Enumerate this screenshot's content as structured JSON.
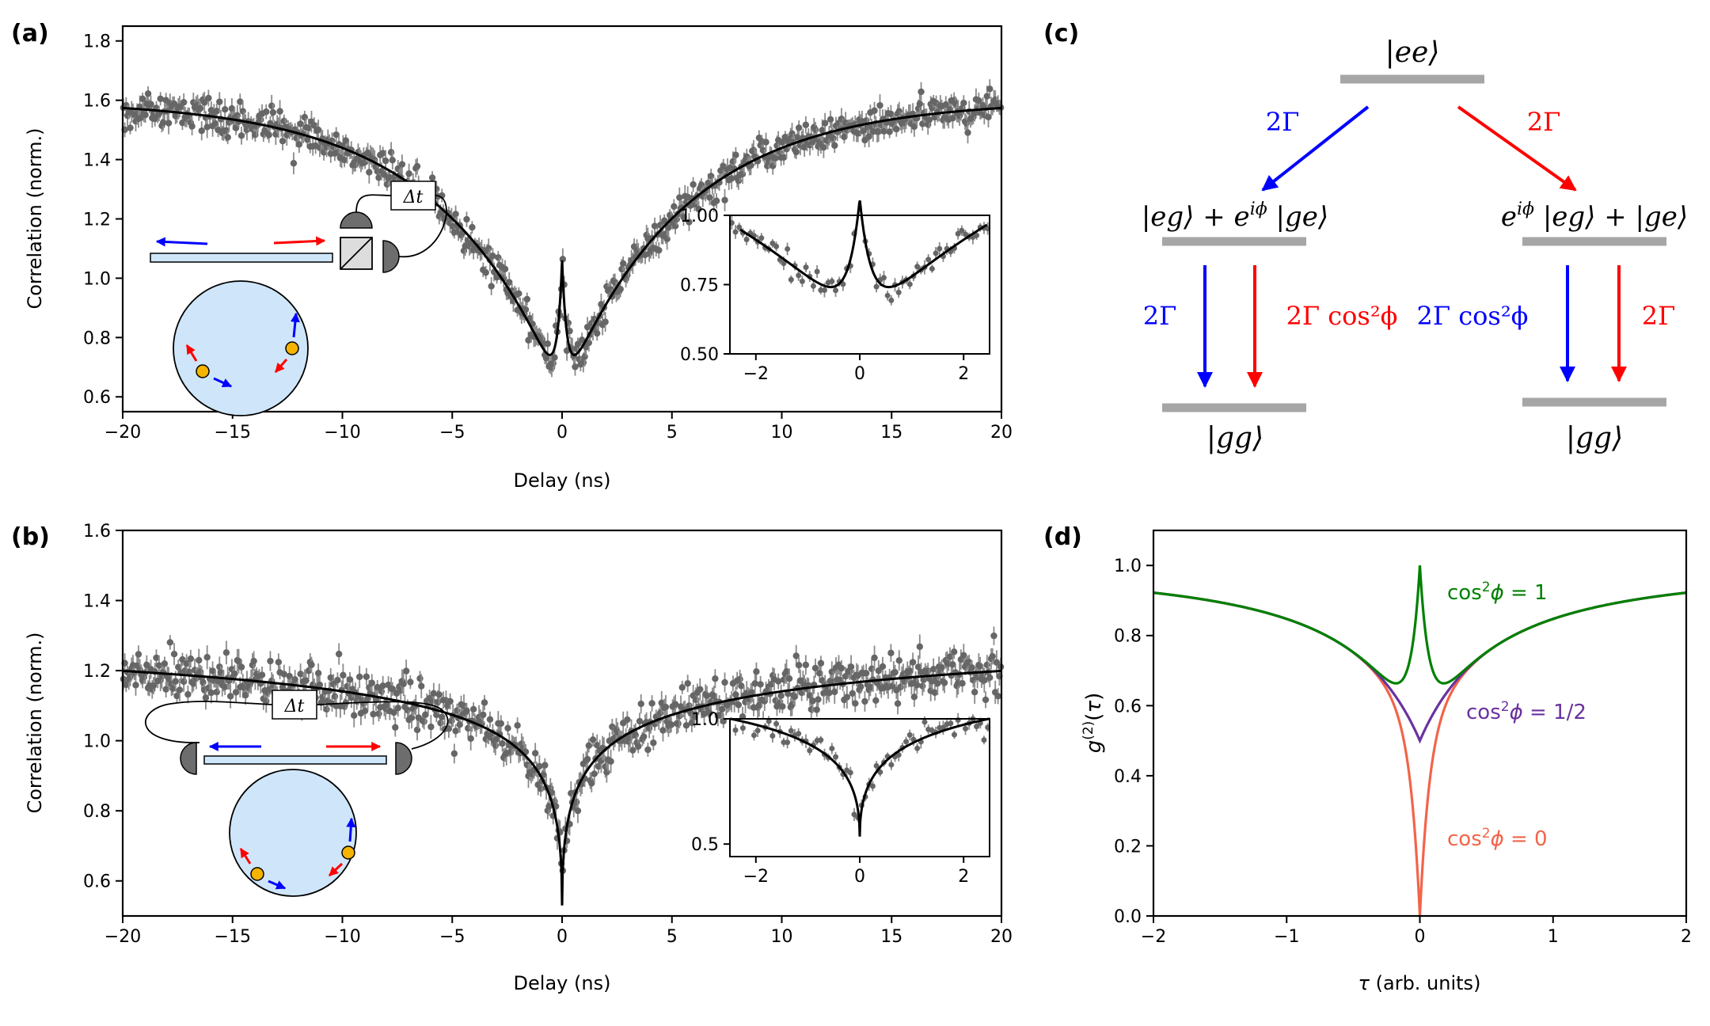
{
  "panel_labels": {
    "a": "(a)",
    "b": "(b)",
    "c": "(c)",
    "d": "(d)"
  },
  "colors": {
    "data": "#666666",
    "fit": "#000000",
    "blue": "#0000ff",
    "red": "#ff0000",
    "level": "#a6a6a6",
    "green": "#008000",
    "purple": "#6a329f",
    "salmon": "#f2644a",
    "resonator": "#cfe6fa",
    "emitter": "#f5b400",
    "detector": "#6d6d6d"
  },
  "inset_labels": {
    "delay": "Δt"
  },
  "chart_data": [
    {
      "id": "a",
      "type": "scatter",
      "xlabel": "Delay (ns)",
      "ylabel": "Correlation (norm.)",
      "xlim": [
        -20,
        20
      ],
      "ylim": [
        0.55,
        1.85
      ],
      "xticks": [
        -20,
        -15,
        -10,
        -5,
        0,
        5,
        10,
        15,
        20
      ],
      "xtick_labels": [
        "−20",
        "−15",
        "−10",
        "−5",
        "0",
        "5",
        "10",
        "15",
        "20"
      ],
      "yticks": [
        0.6,
        0.8,
        1.0,
        1.2,
        1.4,
        1.6,
        1.8
      ],
      "ytick_labels": [
        "0.6",
        "0.8",
        "1.0",
        "1.2",
        "1.4",
        "1.6",
        "1.8"
      ],
      "fit": {
        "baseline": 1.6,
        "slow_depth": 0.99,
        "slow_tau_ns": 5.5,
        "fast_amp": 0.45,
        "fast_tau_ns": 0.22
      },
      "inset": {
        "xlim": [
          -2.5,
          2.5
        ],
        "ylim": [
          0.5,
          1.0
        ],
        "xticks": [
          -2,
          0,
          2
        ],
        "xtick_labels": [
          "−2",
          "0",
          "2"
        ],
        "yticks": [
          0.5,
          0.75,
          1.0
        ],
        "ytick_labels": [
          "0.50",
          "0.75",
          "1.00"
        ]
      }
    },
    {
      "id": "b",
      "type": "scatter",
      "xlabel": "Delay (ns)",
      "ylabel": "Correlation (norm.)",
      "xlim": [
        -20,
        20
      ],
      "ylim": [
        0.5,
        1.6
      ],
      "xticks": [
        -20,
        -15,
        -10,
        -5,
        0,
        5,
        10,
        15,
        20
      ],
      "xtick_labels": [
        "−20",
        "−15",
        "−10",
        "−5",
        "0",
        "5",
        "10",
        "15",
        "20"
      ],
      "yticks": [
        0.6,
        0.8,
        1.0,
        1.2,
        1.4,
        1.6
      ],
      "ytick_labels": [
        "0.6",
        "0.8",
        "1.0",
        "1.2",
        "1.4",
        "1.6"
      ],
      "fit": {
        "baseline": 1.4,
        "depth": 0.87,
        "scale_ns": 6.5
      },
      "inset": {
        "xlim": [
          -2.5,
          2.5
        ],
        "ylim": [
          0.45,
          1.0
        ],
        "xticks": [
          -2,
          0,
          2
        ],
        "xtick_labels": [
          "−2",
          "0",
          "2"
        ],
        "yticks": [
          0.5,
          1.0
        ],
        "ytick_labels": [
          "0.5",
          "1.0"
        ]
      }
    },
    {
      "id": "d",
      "type": "line",
      "xlabel": "τ (arb. units)",
      "ylabel": "g(2)(τ)",
      "xlim": [
        -2,
        2
      ],
      "ylim": [
        0,
        1.1
      ],
      "xticks": [
        -2,
        -1,
        0,
        1,
        2
      ],
      "xtick_labels": [
        "−2",
        "−1",
        "0",
        "1",
        "2"
      ],
      "yticks": [
        0,
        0.2,
        0.4,
        0.6,
        0.8,
        1.0
      ],
      "ytick_labels": [
        "0.0",
        "0.2",
        "0.4",
        "0.6",
        "0.8",
        "1.0"
      ],
      "series": [
        {
          "name": "cos²ϕ = 1",
          "cos2phi": 1,
          "color": "#008000"
        },
        {
          "name": "cos²ϕ = 1/2",
          "cos2phi": 0.5,
          "color": "#6a329f"
        },
        {
          "name": "cos²ϕ = 0",
          "cos2phi": 0,
          "color": "#f2644a"
        }
      ]
    }
  ],
  "diagram_c": {
    "levels": {
      "ee": "|ee⟩",
      "plus": "|eg⟩ + e^{iϕ}|ge⟩",
      "minus": "e^{iϕ}|eg⟩ + |ge⟩",
      "gg_left": "|gg⟩",
      "gg_right": "|gg⟩"
    },
    "rates": {
      "top_left": "2Γ",
      "top_right": "2Γ",
      "bottom_left_blue": "2Γ",
      "bottom_left_red": "2Γ cos²ϕ",
      "bottom_right_blue": "2Γ cos²ϕ",
      "bottom_right_red": "2Γ"
    }
  }
}
